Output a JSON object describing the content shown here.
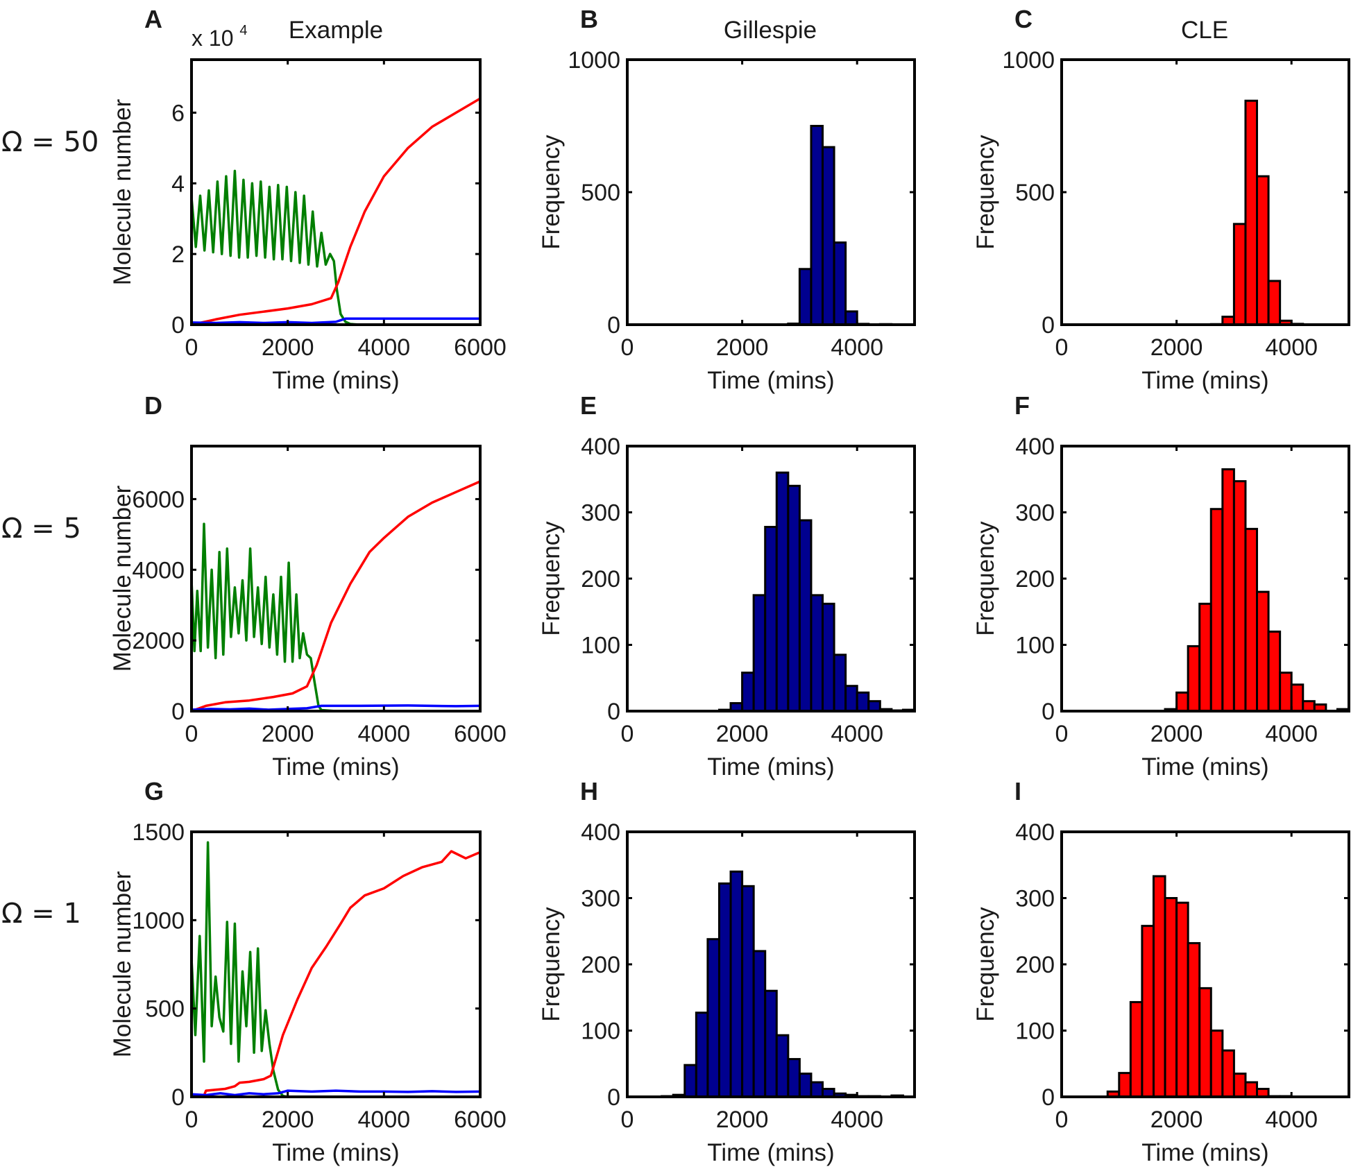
{
  "figure": {
    "row_labels": [
      "Ω = 50",
      "Ω = 5",
      "Ω = 1"
    ],
    "column_titles": [
      "Example",
      "Gillespie",
      "CLE"
    ],
    "colors": {
      "species_red": "#ff0000",
      "species_green": "#007f00",
      "species_blue": "#0000ff",
      "gillespie_bar": "#00008f",
      "cle_bar": "#ff0000",
      "bar_edge": "#000000"
    }
  },
  "chart_data": [
    {
      "id": "A",
      "panel_label": "A",
      "type": "line",
      "title": "Example",
      "xlabel": "Time (mins)",
      "ylabel": "Molecule number",
      "xlim": [
        0,
        6000
      ],
      "ylim": [
        0,
        75000
      ],
      "xticks": [
        0,
        2000,
        4000,
        6000
      ],
      "xticklabels": [
        "0",
        "2000",
        "4000",
        "6000"
      ],
      "yticks": [
        0,
        20000,
        40000,
        60000
      ],
      "yticklabels": [
        "0",
        "2",
        "4",
        "6"
      ],
      "yscale_label": "x 10",
      "yscale_exponent": "4",
      "series": [
        {
          "name": "green",
          "color": "#007f00",
          "x": [
            0,
            90,
            180,
            270,
            360,
            450,
            540,
            630,
            720,
            810,
            900,
            990,
            1080,
            1170,
            1260,
            1350,
            1440,
            1530,
            1620,
            1710,
            1800,
            1890,
            1980,
            2070,
            2160,
            2250,
            2340,
            2430,
            2520,
            2610,
            2700,
            2790,
            2880,
            2960,
            3020,
            3100,
            3200,
            3300,
            3500,
            4000,
            6000
          ],
          "y": [
            36000,
            22000,
            36500,
            21000,
            38000,
            20500,
            40500,
            20000,
            42000,
            19500,
            43500,
            19000,
            41000,
            19000,
            40000,
            19500,
            40500,
            19000,
            39000,
            18500,
            39500,
            18500,
            39000,
            18000,
            37500,
            17500,
            36500,
            17000,
            32000,
            16500,
            26000,
            17000,
            20000,
            18000,
            10000,
            3000,
            800,
            200,
            0,
            0,
            0
          ]
        },
        {
          "name": "red",
          "color": "#ff0000",
          "x": [
            0,
            500,
            1000,
            1500,
            2000,
            2500,
            2900,
            3050,
            3300,
            3600,
            4000,
            4500,
            5000,
            5500,
            6000
          ],
          "y": [
            0,
            1500,
            2800,
            3700,
            4600,
            5800,
            7500,
            12000,
            22000,
            32000,
            42000,
            50000,
            56000,
            60000,
            64000
          ]
        },
        {
          "name": "blue",
          "color": "#0000ff",
          "x": [
            0,
            500,
            1000,
            1500,
            2000,
            2500,
            3000,
            3200,
            4000,
            5000,
            6000
          ],
          "y": [
            600,
            500,
            700,
            500,
            700,
            500,
            800,
            1700,
            1700,
            1700,
            1700
          ]
        }
      ]
    },
    {
      "id": "B",
      "panel_label": "B",
      "type": "bar",
      "title": "Gillespie",
      "xlabel": "Time (mins)",
      "ylabel": "Frequency",
      "xlim": [
        0,
        5000
      ],
      "ylim": [
        0,
        1000
      ],
      "xticks": [
        0,
        2000,
        4000
      ],
      "xticklabels": [
        "0",
        "2000",
        "4000"
      ],
      "yticks": [
        0,
        500,
        1000
      ],
      "yticklabels": [
        "0",
        "500",
        "1000"
      ],
      "bin_width": 200,
      "color": "#00008f",
      "bin_starts": [
        2800,
        3000,
        3200,
        3400,
        3600,
        3800,
        4000,
        4400
      ],
      "values": [
        4,
        210,
        750,
        670,
        310,
        50,
        3,
        2
      ]
    },
    {
      "id": "C",
      "panel_label": "C",
      "type": "bar",
      "title": "CLE",
      "xlabel": "Time (mins)",
      "ylabel": "Frequency",
      "xlim": [
        0,
        5000
      ],
      "ylim": [
        0,
        1000
      ],
      "xticks": [
        0,
        2000,
        4000
      ],
      "xticklabels": [
        "0",
        "2000",
        "4000"
      ],
      "yticks": [
        0,
        500,
        1000
      ],
      "yticklabels": [
        "0",
        "500",
        "1000"
      ],
      "bin_width": 200,
      "color": "#ff0000",
      "bin_starts": [
        2600,
        2800,
        3000,
        3200,
        3400,
        3600,
        3800,
        4000
      ],
      "values": [
        2,
        30,
        380,
        845,
        560,
        165,
        15,
        3
      ]
    },
    {
      "id": "D",
      "panel_label": "D",
      "type": "line",
      "title": "",
      "xlabel": "Time (mins)",
      "ylabel": "Molecule number",
      "xlim": [
        0,
        6000
      ],
      "ylim": [
        0,
        7500
      ],
      "xticks": [
        0,
        2000,
        4000,
        6000
      ],
      "xticklabels": [
        "0",
        "2000",
        "4000",
        "6000"
      ],
      "yticks": [
        0,
        2000,
        4000,
        6000
      ],
      "yticklabels": [
        "0",
        "2000",
        "4000",
        "6000"
      ],
      "series": [
        {
          "name": "green",
          "color": "#007f00",
          "x": [
            0,
            60,
            120,
            190,
            260,
            340,
            420,
            500,
            580,
            660,
            740,
            820,
            900,
            980,
            1060,
            1140,
            1220,
            1300,
            1380,
            1460,
            1540,
            1620,
            1700,
            1780,
            1860,
            1940,
            2020,
            2100,
            2180,
            2250,
            2320,
            2400,
            2480,
            2560,
            2640,
            2700,
            3000,
            6000
          ],
          "y": [
            3700,
            1700,
            3400,
            1700,
            5300,
            1800,
            4000,
            1500,
            4500,
            1600,
            4600,
            2100,
            3500,
            2200,
            3700,
            2000,
            4600,
            2100,
            3500,
            1900,
            3800,
            1800,
            3300,
            1600,
            3800,
            1400,
            4200,
            1400,
            3300,
            1500,
            2200,
            1600,
            1500,
            800,
            150,
            30,
            0,
            0
          ]
        },
        {
          "name": "red",
          "color": "#ff0000",
          "x": [
            0,
            300,
            700,
            1200,
            1700,
            2100,
            2400,
            2600,
            2900,
            3300,
            3700,
            4000,
            4500,
            5000,
            5500,
            6000
          ],
          "y": [
            0,
            150,
            250,
            300,
            400,
            500,
            700,
            1300,
            2500,
            3600,
            4500,
            4900,
            5500,
            5900,
            6200,
            6500
          ]
        },
        {
          "name": "blue",
          "color": "#0000ff",
          "x": [
            0,
            400,
            800,
            1200,
            1600,
            2000,
            2400,
            2700,
            3500,
            4500,
            5500,
            6000
          ],
          "y": [
            40,
            60,
            50,
            70,
            40,
            60,
            80,
            150,
            150,
            160,
            140,
            150
          ]
        }
      ]
    },
    {
      "id": "E",
      "panel_label": "E",
      "type": "bar",
      "title": "",
      "xlabel": "Time (mins)",
      "ylabel": "Frequency",
      "xlim": [
        0,
        5000
      ],
      "ylim": [
        0,
        400
      ],
      "xticks": [
        0,
        2000,
        4000
      ],
      "xticklabels": [
        "0",
        "2000",
        "4000"
      ],
      "yticks": [
        0,
        100,
        200,
        300,
        400
      ],
      "yticklabels": [
        "0",
        "100",
        "200",
        "300",
        "400"
      ],
      "bin_width": 200,
      "color": "#00008f",
      "bin_starts": [
        1600,
        1800,
        2000,
        2200,
        2400,
        2600,
        2800,
        3000,
        3200,
        3400,
        3600,
        3800,
        4000,
        4200,
        4400,
        4600,
        4800
      ],
      "values": [
        2,
        12,
        58,
        175,
        278,
        360,
        340,
        288,
        175,
        162,
        85,
        38,
        28,
        15,
        3,
        1,
        2
      ]
    },
    {
      "id": "F",
      "panel_label": "F",
      "type": "bar",
      "title": "",
      "xlabel": "Time (mins)",
      "ylabel": "Frequency",
      "xlim": [
        0,
        5000
      ],
      "ylim": [
        0,
        400
      ],
      "xticks": [
        0,
        2000,
        4000
      ],
      "xticklabels": [
        "0",
        "2000",
        "4000"
      ],
      "yticks": [
        0,
        100,
        200,
        300,
        400
      ],
      "yticklabels": [
        "0",
        "100",
        "200",
        "300",
        "400"
      ],
      "bin_width": 200,
      "color": "#ff0000",
      "bin_starts": [
        1800,
        2000,
        2200,
        2400,
        2600,
        2800,
        3000,
        3200,
        3400,
        3600,
        3800,
        4000,
        4200,
        4400,
        4600,
        4800
      ],
      "values": [
        3,
        28,
        98,
        162,
        305,
        365,
        347,
        275,
        180,
        120,
        58,
        40,
        15,
        10,
        0,
        3
      ]
    },
    {
      "id": "G",
      "panel_label": "G",
      "type": "line",
      "title": "",
      "xlabel": "Time (mins)",
      "ylabel": "Molecule number",
      "xlim": [
        0,
        6000
      ],
      "ylim": [
        0,
        1500
      ],
      "xticks": [
        0,
        2000,
        4000,
        6000
      ],
      "xticklabels": [
        "0",
        "2000",
        "4000",
        "6000"
      ],
      "yticks": [
        0,
        500,
        1000,
        1500
      ],
      "yticklabels": [
        "0",
        "500",
        "1000",
        "1500"
      ],
      "series": [
        {
          "name": "green",
          "color": "#007f00",
          "x": [
            0,
            80,
            170,
            260,
            340,
            420,
            500,
            580,
            660,
            740,
            820,
            900,
            980,
            1060,
            1140,
            1220,
            1300,
            1380,
            1460,
            1540,
            1620,
            1700,
            1800,
            1900,
            2000,
            6000
          ],
          "y": [
            780,
            350,
            910,
            200,
            1440,
            400,
            680,
            450,
            370,
            990,
            300,
            980,
            200,
            710,
            400,
            820,
            250,
            840,
            260,
            490,
            300,
            150,
            40,
            5,
            0,
            0
          ]
        },
        {
          "name": "red",
          "color": "#ff0000",
          "x": [
            0,
            250,
            300,
            700,
            900,
            1000,
            1200,
            1500,
            1650,
            1900,
            2200,
            2500,
            2800,
            3100,
            3300,
            3600,
            4000,
            4400,
            4800,
            5200,
            5400,
            5700,
            6000
          ],
          "y": [
            0,
            0,
            35,
            45,
            60,
            80,
            85,
            100,
            120,
            350,
            550,
            730,
            850,
            980,
            1070,
            1140,
            1180,
            1250,
            1300,
            1330,
            1390,
            1350,
            1385
          ]
        },
        {
          "name": "blue",
          "color": "#0000ff",
          "x": [
            0,
            300,
            600,
            900,
            1200,
            1500,
            1800,
            2000,
            2500,
            3000,
            3500,
            4000,
            4500,
            5000,
            5500,
            6000
          ],
          "y": [
            15,
            10,
            20,
            10,
            20,
            15,
            20,
            35,
            30,
            35,
            30,
            30,
            28,
            32,
            28,
            30
          ]
        }
      ]
    },
    {
      "id": "H",
      "panel_label": "H",
      "type": "bar",
      "title": "",
      "xlabel": "Time (mins)",
      "ylabel": "Frequency",
      "xlim": [
        0,
        5000
      ],
      "ylim": [
        0,
        400
      ],
      "xticks": [
        0,
        2000,
        4000
      ],
      "xticklabels": [
        "0",
        "2000",
        "4000"
      ],
      "yticks": [
        0,
        100,
        200,
        300,
        400
      ],
      "yticklabels": [
        "0",
        "100",
        "200",
        "300",
        "400"
      ],
      "bin_width": 200,
      "color": "#00008f",
      "bin_starts": [
        600,
        800,
        1000,
        1200,
        1400,
        1600,
        1800,
        2000,
        2200,
        2400,
        2600,
        2800,
        3000,
        3200,
        3400,
        3600,
        3800,
        4000,
        4200,
        4600
      ],
      "values": [
        1,
        3,
        48,
        127,
        238,
        322,
        340,
        318,
        220,
        160,
        93,
        57,
        35,
        22,
        12,
        5,
        3,
        1,
        1,
        2
      ]
    },
    {
      "id": "I",
      "panel_label": "I",
      "type": "bar",
      "title": "",
      "xlabel": "Time (mins)",
      "ylabel": "Frequency",
      "xlim": [
        0,
        5000
      ],
      "ylim": [
        0,
        400
      ],
      "xticks": [
        0,
        2000,
        4000
      ],
      "xticklabels": [
        "0",
        "2000",
        "4000"
      ],
      "yticks": [
        0,
        100,
        200,
        300,
        400
      ],
      "yticklabels": [
        "0",
        "100",
        "200",
        "300",
        "400"
      ],
      "bin_width": 200,
      "color": "#ff0000",
      "bin_starts": [
        800,
        1000,
        1200,
        1400,
        1600,
        1800,
        2000,
        2200,
        2400,
        2600,
        2800,
        3000,
        3200,
        3400,
        3600,
        3800
      ],
      "values": [
        8,
        36,
        143,
        258,
        333,
        300,
        293,
        232,
        164,
        100,
        70,
        35,
        22,
        12,
        1,
        1
      ]
    }
  ]
}
